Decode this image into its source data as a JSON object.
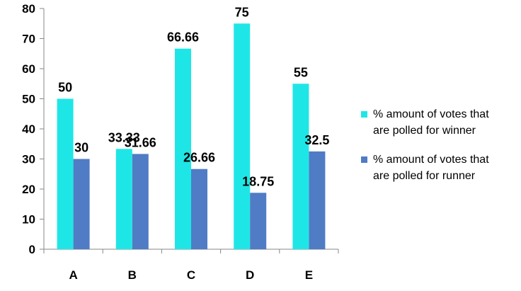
{
  "chart_data": {
    "type": "bar",
    "categories": [
      "A",
      "B",
      "C",
      "D",
      "E"
    ],
    "series": [
      {
        "name": "% amount of votes that are polled for winner",
        "values": [
          50,
          33.33,
          66.66,
          75,
          55
        ],
        "labels": [
          "50",
          "33.33",
          "66.66",
          "75",
          "55"
        ],
        "color": "#1FE6E6"
      },
      {
        "name": "% amount of votes that are polled for runner",
        "values": [
          30,
          31.66,
          26.66,
          18.75,
          32.5
        ],
        "labels": [
          "30",
          "31.66",
          "26.66",
          "18.75",
          "32.5"
        ],
        "color": "#4F7CC4"
      }
    ],
    "ylim": [
      0,
      80
    ],
    "yticks": [
      "0",
      "10",
      "20",
      "30",
      "40",
      "50",
      "60",
      "70",
      "80"
    ],
    "grid": false,
    "legend_position": "right",
    "title": "",
    "xlabel": "",
    "ylabel": ""
  }
}
